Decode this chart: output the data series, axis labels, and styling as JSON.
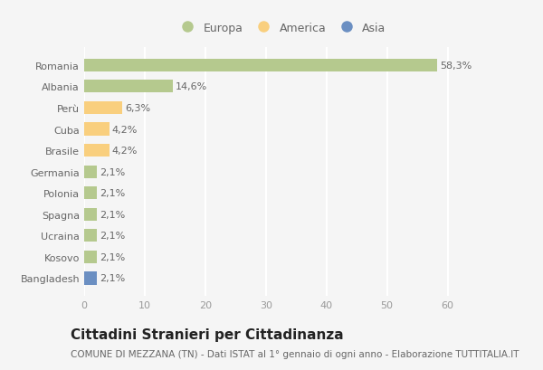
{
  "countries": [
    "Romania",
    "Albania",
    "Perù",
    "Cuba",
    "Brasile",
    "Germania",
    "Polonia",
    "Spagna",
    "Ucraina",
    "Kosovo",
    "Bangladesh"
  ],
  "values": [
    58.3,
    14.6,
    6.3,
    4.2,
    4.2,
    2.1,
    2.1,
    2.1,
    2.1,
    2.1,
    2.1
  ],
  "labels": [
    "58,3%",
    "14,6%",
    "6,3%",
    "4,2%",
    "4,2%",
    "2,1%",
    "2,1%",
    "2,1%",
    "2,1%",
    "2,1%",
    "2,1%"
  ],
  "colors": [
    "#b5c98e",
    "#b5c98e",
    "#f9cf7e",
    "#f9cf7e",
    "#f9cf7e",
    "#b5c98e",
    "#b5c98e",
    "#b5c98e",
    "#b5c98e",
    "#b5c98e",
    "#6b8fc2"
  ],
  "legend_labels": [
    "Europa",
    "America",
    "Asia"
  ],
  "legend_colors": [
    "#b5c98e",
    "#f9cf7e",
    "#6b8fc2"
  ],
  "title": "Cittadini Stranieri per Cittadinanza",
  "subtitle": "COMUNE DI MEZZANA (TN) - Dati ISTAT al 1° gennaio di ogni anno - Elaborazione TUTTITALIA.IT",
  "xlim": [
    0,
    65
  ],
  "xticks": [
    0,
    10,
    20,
    30,
    40,
    50,
    60
  ],
  "background_color": "#f5f5f5",
  "grid_color": "#ffffff",
  "bar_height": 0.6,
  "title_fontsize": 11,
  "subtitle_fontsize": 7.5,
  "label_fontsize": 8,
  "tick_fontsize": 8,
  "legend_fontsize": 9
}
